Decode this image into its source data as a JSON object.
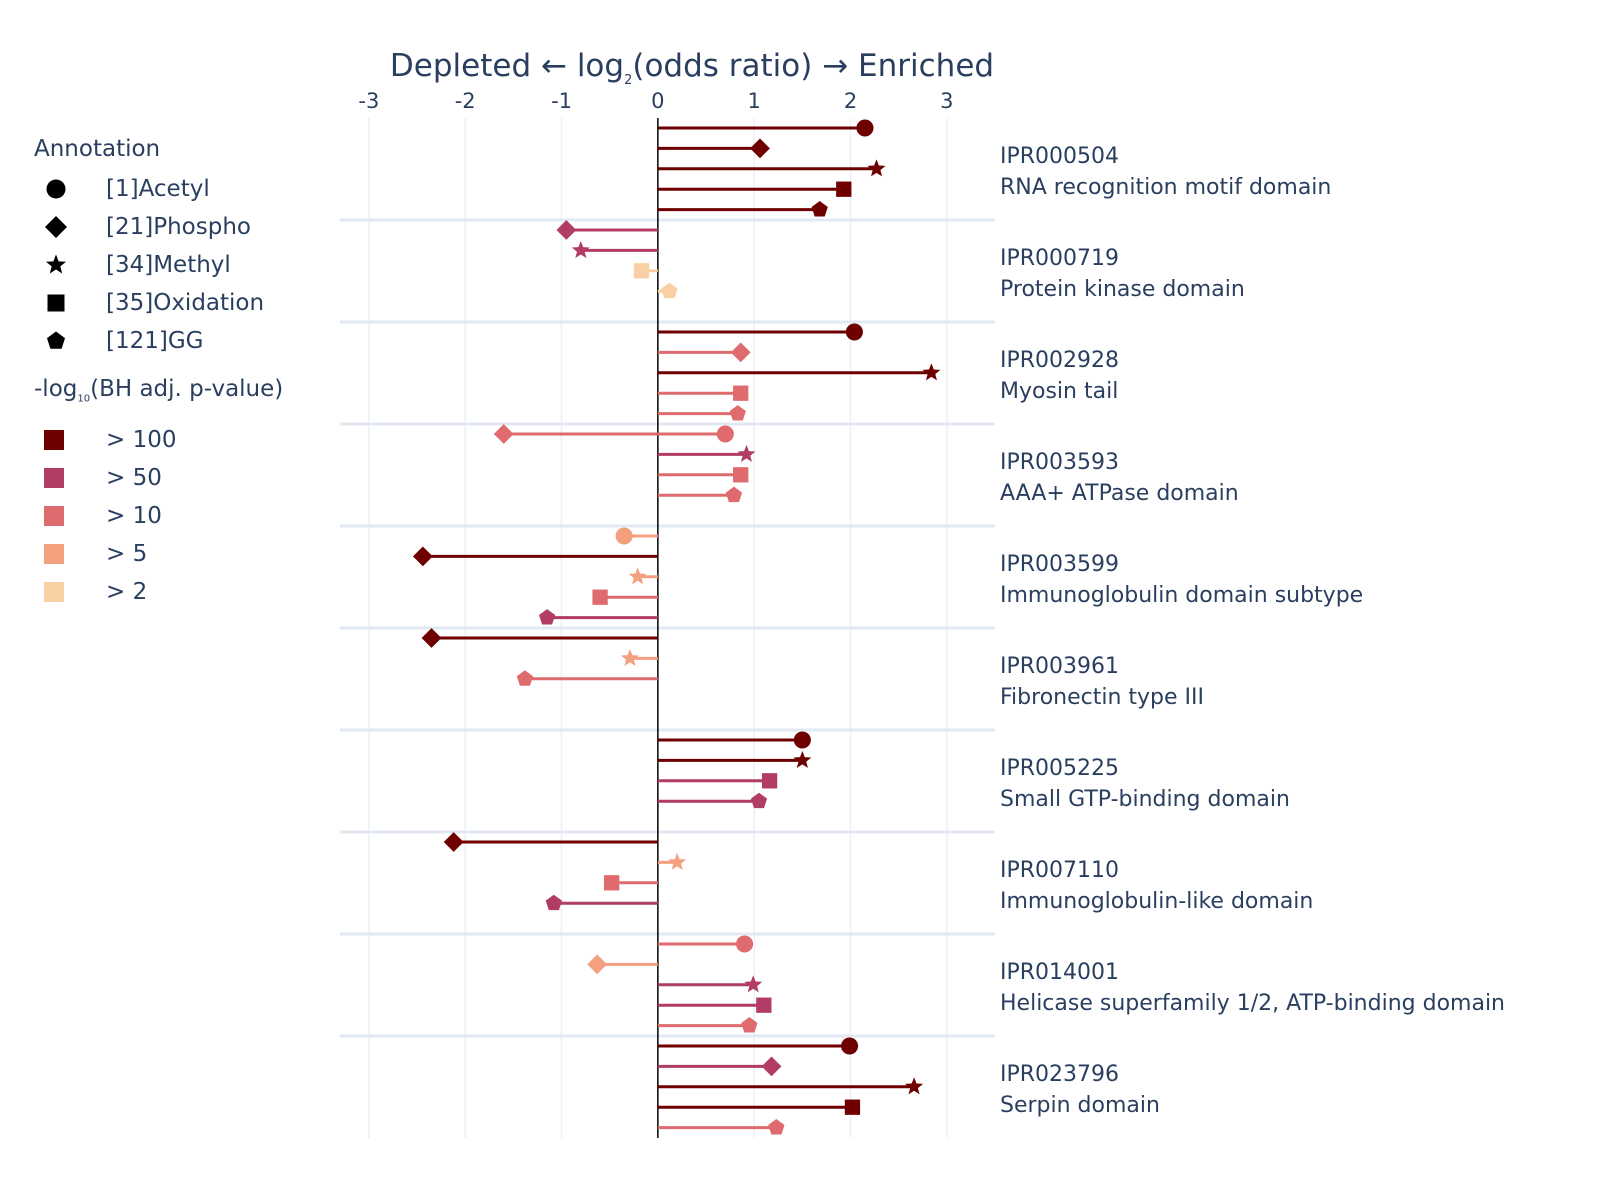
{
  "chart_data": {
    "type": "lollipop",
    "title_parts": [
      "Depleted ← log",
      "2",
      "(odds ratio) → Enriched"
    ],
    "xlim": [
      -3.3,
      3.5
    ],
    "xticks": [
      -3,
      -2,
      -1,
      0,
      1,
      2,
      3
    ],
    "grid": true,
    "legend_position": "left",
    "annotation_legend": {
      "title": "Annotation",
      "items": [
        {
          "key": "acetyl",
          "label": "[1]Acetyl",
          "symbol": "circle"
        },
        {
          "key": "phospho",
          "label": "[21]Phospho",
          "symbol": "diamond"
        },
        {
          "key": "methyl",
          "label": "[34]Methyl",
          "symbol": "star"
        },
        {
          "key": "oxidation",
          "label": "[35]Oxidation",
          "symbol": "square"
        },
        {
          "key": "gg",
          "label": "[121]GG",
          "symbol": "pentagon"
        }
      ]
    },
    "pvalue_legend": {
      "title_parts": [
        "-log",
        "10",
        "(BH adj. p-value)"
      ],
      "items": [
        {
          "label": "> 100",
          "color": "#6e0000"
        },
        {
          "label": "> 50",
          "color": "#b13c66"
        },
        {
          "label": "> 10",
          "color": "#e06b6e"
        },
        {
          "label": "> 5",
          "color": "#f3a07f"
        },
        {
          "label": "> 2",
          "color": "#f8d0a4"
        }
      ]
    },
    "domains": [
      {
        "id": "IPR000504",
        "name": "RNA recognition motif domain",
        "points": [
          {
            "ptm": "acetyl",
            "value": 2.15,
            "level": 0
          },
          {
            "ptm": "phospho",
            "value": 1.06,
            "level": 0
          },
          {
            "ptm": "methyl",
            "value": 2.27,
            "level": 0
          },
          {
            "ptm": "oxidation",
            "value": 1.93,
            "level": 0
          },
          {
            "ptm": "gg",
            "value": 1.68,
            "level": 0
          }
        ]
      },
      {
        "id": "IPR000719",
        "name": "Protein kinase domain",
        "points": [
          {
            "ptm": "phospho",
            "value": -0.95,
            "level": 1
          },
          {
            "ptm": "methyl",
            "value": -0.8,
            "level": 1
          },
          {
            "ptm": "oxidation",
            "value": -0.17,
            "level": 4
          },
          {
            "ptm": "gg",
            "value": 0.12,
            "level": 4
          }
        ]
      },
      {
        "id": "IPR002928",
        "name": "Myosin tail",
        "points": [
          {
            "ptm": "acetyl",
            "value": 2.04,
            "level": 0
          },
          {
            "ptm": "phospho",
            "value": 0.86,
            "level": 2
          },
          {
            "ptm": "methyl",
            "value": 2.84,
            "level": 0
          },
          {
            "ptm": "oxidation",
            "value": 0.86,
            "level": 2
          },
          {
            "ptm": "gg",
            "value": 0.83,
            "level": 2
          },
          {
            "ptm": "acetyl",
            "value": 0.7,
            "level": 2
          }
        ]
      },
      {
        "id": "IPR003593",
        "name": "AAA+ ATPase domain",
        "points": [
          {
            "ptm": "phospho",
            "value": -1.6,
            "level": 2
          },
          {
            "ptm": "methyl",
            "value": 0.92,
            "level": 1
          },
          {
            "ptm": "oxidation",
            "value": 0.86,
            "level": 2
          },
          {
            "ptm": "gg",
            "value": 0.79,
            "level": 2
          }
        ]
      },
      {
        "id": "IPR003599",
        "name": "Immunoglobulin domain subtype",
        "points": [
          {
            "ptm": "acetyl",
            "value": -0.35,
            "level": 3
          },
          {
            "ptm": "phospho",
            "value": -2.44,
            "level": 0
          },
          {
            "ptm": "methyl",
            "value": -0.21,
            "level": 3
          },
          {
            "ptm": "oxidation",
            "value": -0.6,
            "level": 2
          },
          {
            "ptm": "gg",
            "value": -1.15,
            "level": 1
          }
        ]
      },
      {
        "id": "IPR003961",
        "name": "Fibronectin type III",
        "points": [
          {
            "ptm": "phospho",
            "value": -2.35,
            "level": 0
          },
          {
            "ptm": "methyl",
            "value": -0.29,
            "level": 3
          },
          {
            "ptm": "gg",
            "value": -1.38,
            "level": 2
          }
        ]
      },
      {
        "id": "IPR005225",
        "name": "Small GTP-binding domain",
        "points": [
          {
            "ptm": "acetyl",
            "value": 1.5,
            "level": 0
          },
          {
            "ptm": "methyl",
            "value": 1.5,
            "level": 0
          },
          {
            "ptm": "oxidation",
            "value": 1.16,
            "level": 1
          },
          {
            "ptm": "gg",
            "value": 1.05,
            "level": 1
          }
        ]
      },
      {
        "id": "IPR007110",
        "name": "Immunoglobulin-like domain",
        "points": [
          {
            "ptm": "phospho",
            "value": -2.12,
            "level": 0
          },
          {
            "ptm": "methyl",
            "value": 0.2,
            "level": 3
          },
          {
            "ptm": "oxidation",
            "value": -0.48,
            "level": 2
          },
          {
            "ptm": "gg",
            "value": -1.08,
            "level": 1
          }
        ]
      },
      {
        "id": "IPR014001",
        "name": "Helicase superfamily 1/2, ATP-binding domain",
        "points": [
          {
            "ptm": "acetyl",
            "value": 0.9,
            "level": 2
          },
          {
            "ptm": "phospho",
            "value": -0.63,
            "level": 3
          },
          {
            "ptm": "methyl",
            "value": 0.99,
            "level": 1
          },
          {
            "ptm": "oxidation",
            "value": 1.1,
            "level": 1
          },
          {
            "ptm": "gg",
            "value": 0.95,
            "level": 2
          }
        ]
      },
      {
        "id": "IPR023796",
        "name": "Serpin domain",
        "points": [
          {
            "ptm": "acetyl",
            "value": 1.99,
            "level": 0
          },
          {
            "ptm": "phospho",
            "value": 1.18,
            "level": 1
          },
          {
            "ptm": "methyl",
            "value": 2.66,
            "level": 0
          },
          {
            "ptm": "oxidation",
            "value": 2.02,
            "level": 0
          },
          {
            "ptm": "gg",
            "value": 1.23,
            "level": 2
          }
        ]
      }
    ]
  }
}
